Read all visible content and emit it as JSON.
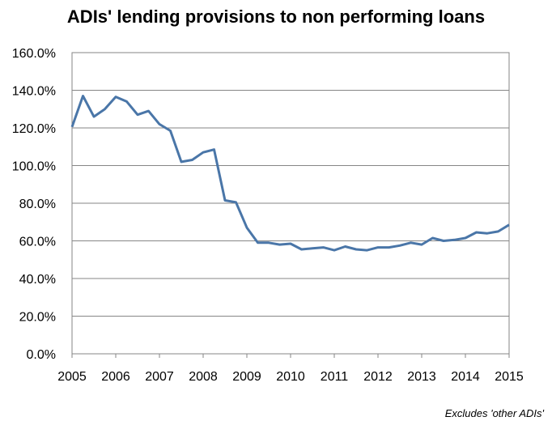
{
  "chart_data": {
    "type": "line",
    "title": "ADIs' lending provisions to non performing loans",
    "note": "Excludes 'other ADIs'",
    "xlabel": "",
    "ylabel": "",
    "xlim": [
      2005,
      2015
    ],
    "ylim": [
      0,
      160
    ],
    "y_ticks": [
      "0.0%",
      "20.0%",
      "40.0%",
      "60.0%",
      "80.0%",
      "100.0%",
      "120.0%",
      "140.0%",
      "160.0%"
    ],
    "x_ticks": [
      "2005",
      "2006",
      "2007",
      "2008",
      "2009",
      "2010",
      "2011",
      "2012",
      "2013",
      "2014",
      "2015"
    ],
    "grid": true,
    "legend": "none",
    "line_color": "#4a76a8",
    "series": [
      {
        "x": [
          2005.0,
          2005.25,
          2005.5,
          2005.75,
          2006.0,
          2006.25,
          2006.5,
          2006.75,
          2007.0,
          2007.25,
          2007.5,
          2007.75,
          2008.0,
          2008.25,
          2008.5,
          2008.75,
          2009.0,
          2009.25,
          2009.5,
          2009.75,
          2010.0,
          2010.25,
          2010.5,
          2010.75,
          2011.0,
          2011.25,
          2011.5,
          2011.75,
          2012.0,
          2012.25,
          2012.5,
          2012.75,
          2013.0,
          2013.25,
          2013.5,
          2013.75,
          2014.0,
          2014.25,
          2014.5,
          2014.75,
          2015.0
        ],
        "values": [
          120.5,
          137.0,
          126.0,
          130.0,
          136.5,
          134.0,
          127.0,
          129.0,
          122.0,
          118.5,
          102.0,
          103.0,
          107.0,
          108.5,
          81.5,
          80.5,
          67.0,
          59.0,
          59.0,
          58.0,
          58.5,
          55.5,
          56.0,
          56.5,
          55.0,
          57.0,
          55.5,
          55.0,
          56.5,
          56.5,
          57.5,
          59.0,
          58.0,
          61.5,
          60.0,
          60.5,
          61.5,
          64.5,
          64.0,
          65.0,
          68.5
        ]
      }
    ]
  }
}
